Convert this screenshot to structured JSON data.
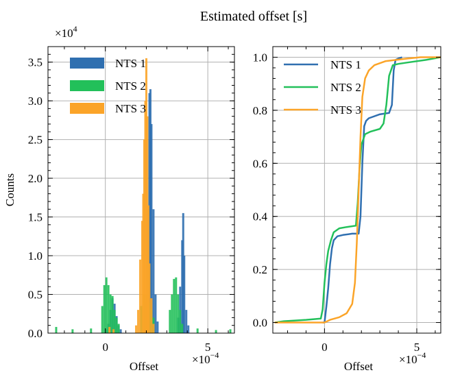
{
  "figure": {
    "suptitle": "Estimated offset [s]"
  },
  "chart_data": [
    {
      "type": "bar",
      "subtype": "histogram",
      "xlabel": "Offset",
      "ylabel": "Counts",
      "x_multiplier": "×10−4",
      "x_multiplier_parts": {
        "base": "×10",
        "exp": "−4"
      },
      "y_multiplier": "×10",
      "y_multiplier_exp": "4",
      "xlim": [
        -2.8,
        6.3
      ],
      "ylim": [
        0,
        3.7
      ],
      "xticks": [
        0,
        5
      ],
      "xtick_labels": [
        "0",
        "5"
      ],
      "yticks": [
        0,
        0.5,
        1.0,
        1.5,
        2.0,
        2.5,
        3.0,
        3.5
      ],
      "ytick_labels": [
        "0.0",
        "0.5",
        "1.0",
        "1.5",
        "2.0",
        "2.5",
        "3.0",
        "3.5"
      ],
      "grid": true,
      "legend_position": "upper-left",
      "series": [
        {
          "name": "NTS 1",
          "color": "#2f6fb0",
          "bins": [
            [
              0.05,
              0.05
            ],
            [
              0.15,
              0.12
            ],
            [
              0.25,
              0.3
            ],
            [
              0.35,
              0.45
            ],
            [
              0.45,
              0.38
            ],
            [
              0.55,
              0.22
            ],
            [
              0.65,
              0.1
            ],
            [
              0.75,
              0.05
            ],
            [
              1.95,
              0.4
            ],
            [
              2.05,
              1.6
            ],
            [
              2.15,
              3.1
            ],
            [
              2.2,
              3.15
            ],
            [
              2.25,
              2.7
            ],
            [
              2.35,
              1.6
            ],
            [
              2.45,
              0.5
            ],
            [
              2.55,
              0.15
            ],
            [
              3.55,
              0.2
            ],
            [
              3.65,
              0.6
            ],
            [
              3.75,
              1.2
            ],
            [
              3.8,
              1.55
            ],
            [
              3.85,
              1.0
            ],
            [
              3.95,
              0.3
            ],
            [
              4.05,
              0.1
            ]
          ]
        },
        {
          "name": "NTS 2",
          "color": "#22c05a",
          "bins": [
            [
              -2.4,
              0.08
            ],
            [
              -1.6,
              0.05
            ],
            [
              -0.7,
              0.06
            ],
            [
              -0.15,
              0.35
            ],
            [
              -0.05,
              0.62
            ],
            [
              0.05,
              0.72
            ],
            [
              0.15,
              0.62
            ],
            [
              0.25,
              0.5
            ],
            [
              0.35,
              0.48
            ],
            [
              0.45,
              0.3
            ],
            [
              0.55,
              0.2
            ],
            [
              0.65,
              0.12
            ],
            [
              1.75,
              0.35
            ],
            [
              1.85,
              0.5
            ],
            [
              1.95,
              0.5
            ],
            [
              2.05,
              0.5
            ],
            [
              2.15,
              0.4
            ],
            [
              2.25,
              0.3
            ],
            [
              2.35,
              0.2
            ],
            [
              3.15,
              0.3
            ],
            [
              3.25,
              0.5
            ],
            [
              3.35,
              0.7
            ],
            [
              3.45,
              0.72
            ],
            [
              3.55,
              0.5
            ],
            [
              3.65,
              0.3
            ],
            [
              3.75,
              0.12
            ],
            [
              4.5,
              0.06
            ],
            [
              5.4,
              0.04
            ],
            [
              6.1,
              0.05
            ]
          ]
        },
        {
          "name": "NTS 3",
          "color": "#fba428",
          "bins": [
            [
              1.5,
              0.1
            ],
            [
              1.6,
              0.3
            ],
            [
              1.7,
              0.95
            ],
            [
              1.8,
              1.45
            ],
            [
              1.85,
              1.8
            ],
            [
              1.9,
              2.5
            ],
            [
              1.95,
              3.0
            ],
            [
              2.0,
              3.55
            ],
            [
              2.05,
              2.8
            ],
            [
              2.1,
              1.65
            ],
            [
              2.15,
              0.9
            ],
            [
              2.25,
              0.45
            ],
            [
              2.35,
              0.12
            ],
            [
              0.2,
              0.08
            ],
            [
              0.4,
              0.05
            ]
          ]
        }
      ]
    },
    {
      "type": "line",
      "subtype": "cdf",
      "xlabel": "Offset",
      "x_multiplier": "×10−4",
      "x_multiplier_parts": {
        "base": "×10",
        "exp": "−4"
      },
      "xlim": [
        -2.8,
        6.3
      ],
      "ylim": [
        -0.04,
        1.04
      ],
      "xticks": [
        0,
        5
      ],
      "xtick_labels": [
        "0",
        "5"
      ],
      "yticks": [
        0.0,
        0.2,
        0.4,
        0.6,
        0.8,
        1.0
      ],
      "ytick_labels": [
        "0.0",
        "0.2",
        "0.4",
        "0.6",
        "0.8",
        "1.0"
      ],
      "grid": true,
      "legend_position": "upper-left",
      "series": [
        {
          "name": "NTS 1",
          "color": "#2f6fb0",
          "points": [
            [
              -0.1,
              0.0
            ],
            [
              0.0,
              0.0
            ],
            [
              0.1,
              0.06
            ],
            [
              0.2,
              0.13
            ],
            [
              0.3,
              0.22
            ],
            [
              0.4,
              0.28
            ],
            [
              0.5,
              0.31
            ],
            [
              0.7,
              0.325
            ],
            [
              1.0,
              0.33
            ],
            [
              1.5,
              0.335
            ],
            [
              1.85,
              0.335
            ],
            [
              1.95,
              0.4
            ],
            [
              2.05,
              0.6
            ],
            [
              2.15,
              0.74
            ],
            [
              2.25,
              0.76
            ],
            [
              2.4,
              0.77
            ],
            [
              3.0,
              0.785
            ],
            [
              3.5,
              0.79
            ],
            [
              3.65,
              0.82
            ],
            [
              3.75,
              0.95
            ],
            [
              3.85,
              0.99
            ],
            [
              4.0,
              0.995
            ],
            [
              4.2,
              1.0
            ]
          ]
        },
        {
          "name": "NTS 2",
          "color": "#22c05a",
          "points": [
            [
              -2.7,
              0.0
            ],
            [
              -2.2,
              0.005
            ],
            [
              -1.0,
              0.01
            ],
            [
              -0.2,
              0.015
            ],
            [
              -0.1,
              0.05
            ],
            [
              0.0,
              0.15
            ],
            [
              0.1,
              0.22
            ],
            [
              0.2,
              0.27
            ],
            [
              0.35,
              0.31
            ],
            [
              0.5,
              0.34
            ],
            [
              0.8,
              0.355
            ],
            [
              1.2,
              0.36
            ],
            [
              1.7,
              0.365
            ],
            [
              1.8,
              0.45
            ],
            [
              1.9,
              0.58
            ],
            [
              2.0,
              0.67
            ],
            [
              2.2,
              0.71
            ],
            [
              2.5,
              0.72
            ],
            [
              3.0,
              0.73
            ],
            [
              3.2,
              0.75
            ],
            [
              3.35,
              0.82
            ],
            [
              3.5,
              0.93
            ],
            [
              3.7,
              0.97
            ],
            [
              4.0,
              0.975
            ],
            [
              4.5,
              0.98
            ],
            [
              5.5,
              0.99
            ],
            [
              6.3,
              1.0
            ]
          ]
        },
        {
          "name": "NTS 3",
          "color": "#fba428",
          "points": [
            [
              -2.7,
              0.0
            ],
            [
              0.0,
              0.0
            ],
            [
              0.3,
              0.01
            ],
            [
              0.8,
              0.02
            ],
            [
              1.2,
              0.035
            ],
            [
              1.5,
              0.07
            ],
            [
              1.65,
              0.15
            ],
            [
              1.75,
              0.3
            ],
            [
              1.85,
              0.5
            ],
            [
              1.95,
              0.7
            ],
            [
              2.05,
              0.85
            ],
            [
              2.2,
              0.92
            ],
            [
              2.4,
              0.95
            ],
            [
              2.7,
              0.97
            ],
            [
              3.3,
              0.985
            ],
            [
              4.5,
              0.995
            ],
            [
              5.2,
              1.0
            ],
            [
              6.3,
              1.0
            ]
          ]
        }
      ]
    }
  ]
}
